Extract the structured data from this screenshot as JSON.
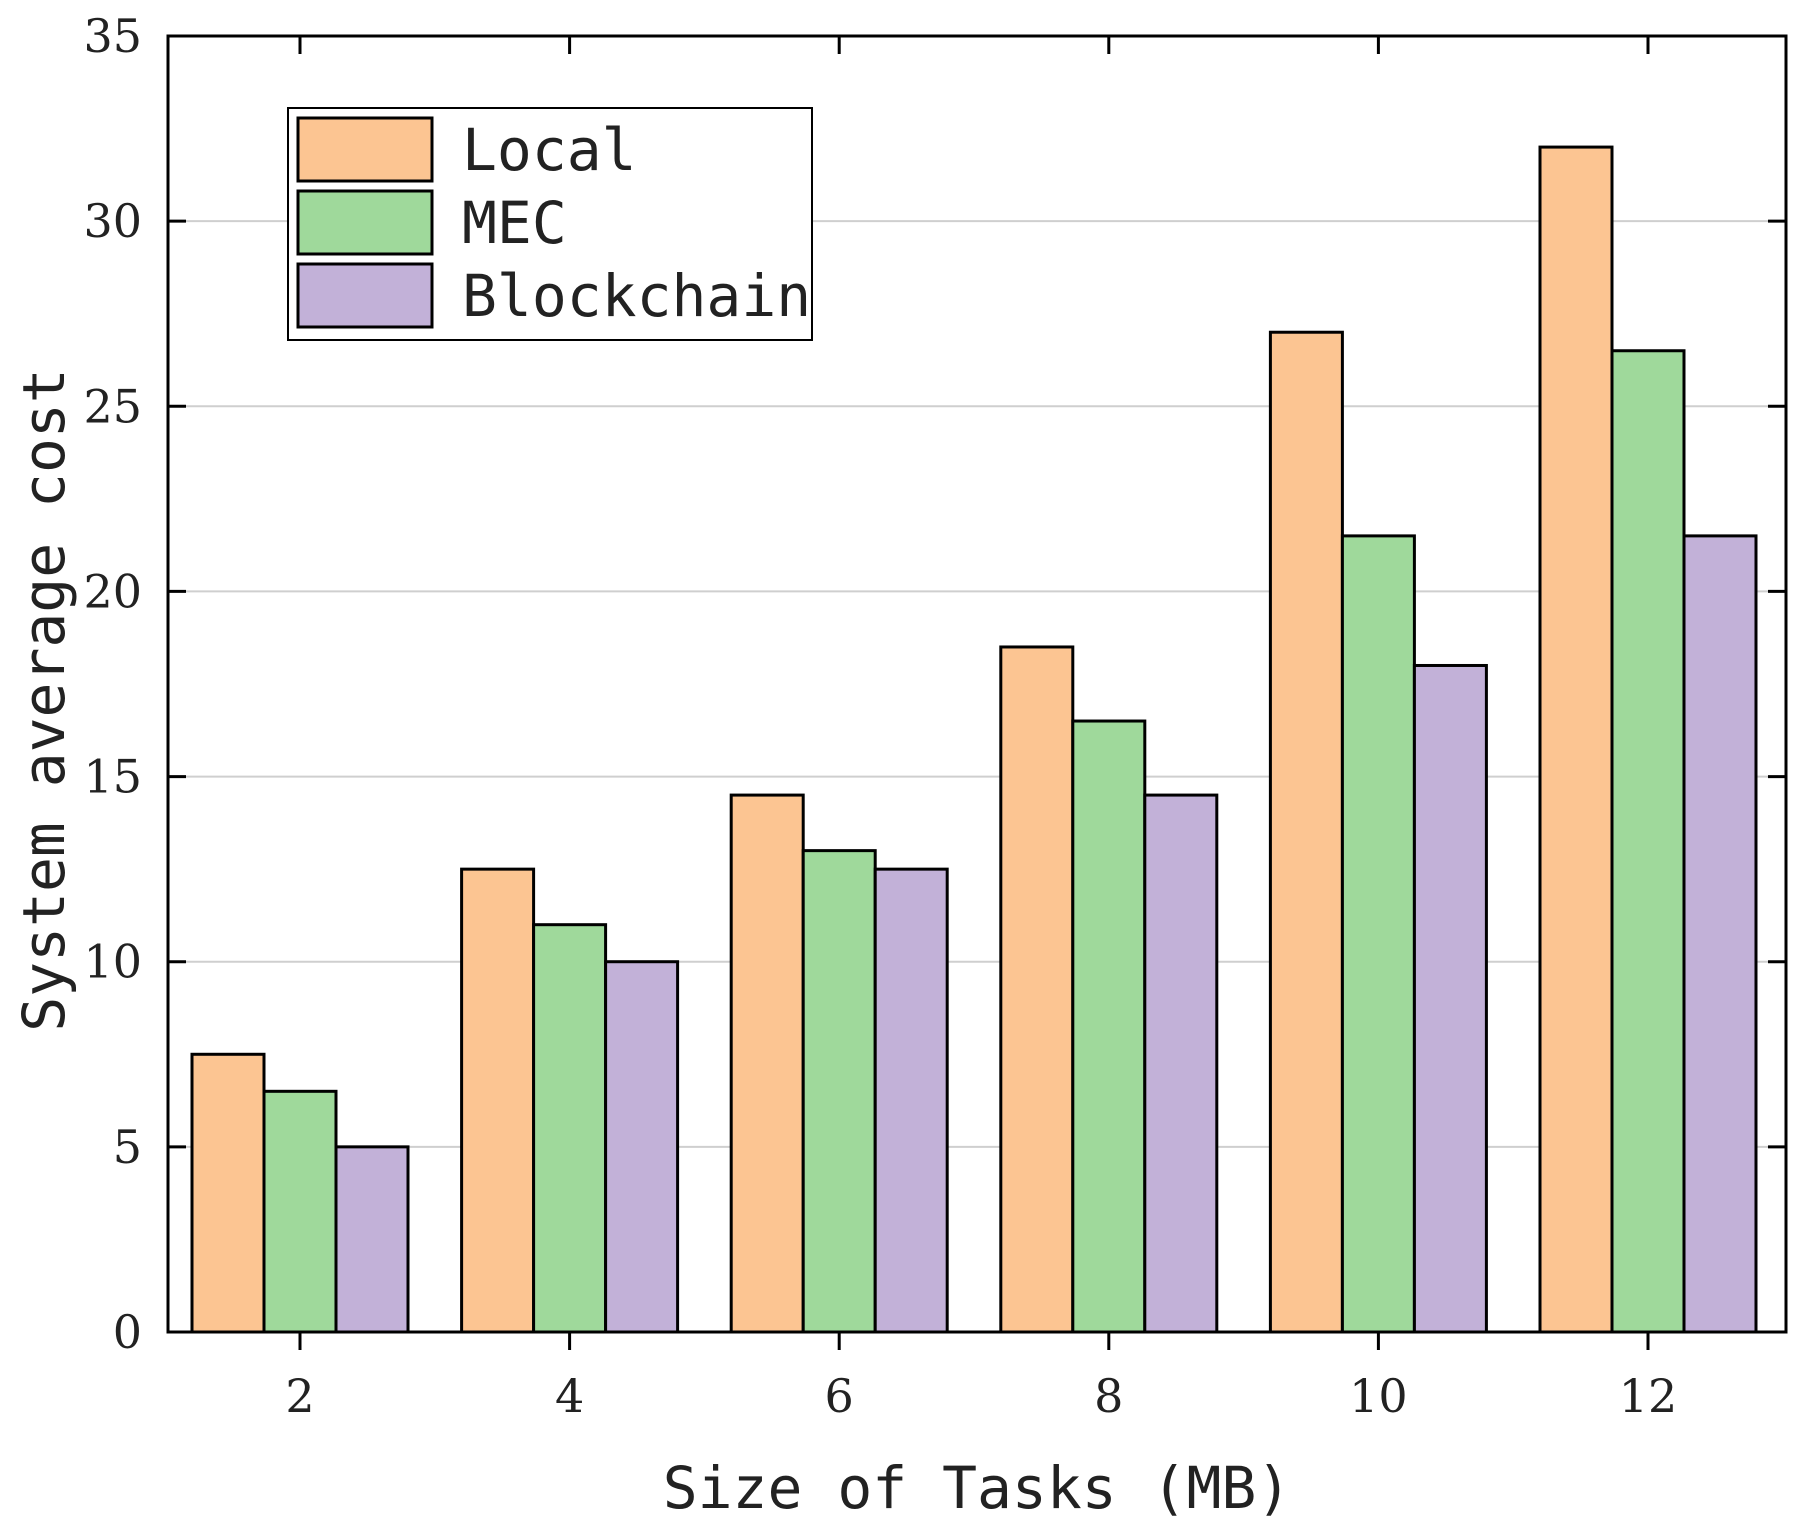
{
  "chart_data": {
    "type": "bar",
    "title": "",
    "xlabel": "Size of Tasks (MB)",
    "ylabel": "System average cost",
    "categories": [
      "2",
      "4",
      "6",
      "8",
      "10",
      "12"
    ],
    "series": [
      {
        "name": "Local",
        "color": "#fcc592",
        "values": [
          7.5,
          12.5,
          14.5,
          18.5,
          27,
          32
        ]
      },
      {
        "name": "MEC",
        "color": "#9fd99b",
        "values": [
          6.5,
          11,
          13,
          16.5,
          21.5,
          26.5
        ]
      },
      {
        "name": "Blockchain",
        "color": "#c2b1d8",
        "values": [
          5,
          10,
          12.5,
          14.5,
          18,
          21.5
        ]
      }
    ],
    "ylim": [
      0,
      35
    ],
    "yticks": [
      0,
      5,
      10,
      15,
      20,
      25,
      30,
      35
    ],
    "grid": true,
    "legend_position": "top-left"
  }
}
